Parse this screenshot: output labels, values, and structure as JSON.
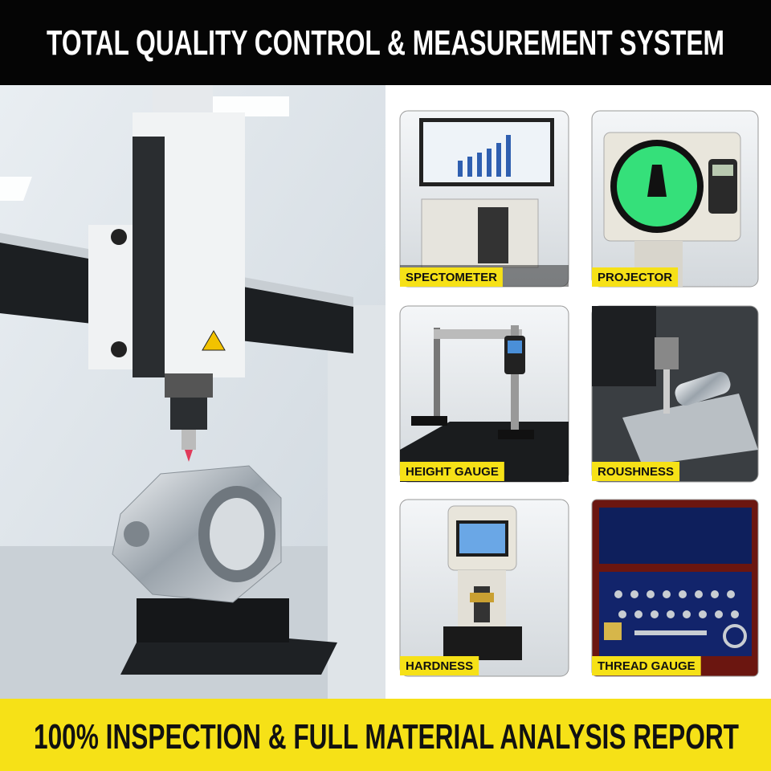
{
  "header": {
    "title": "TOTAL QUALITY CONTROL & MEASUREMENT SYSTEM"
  },
  "tiles": [
    {
      "label": "SPECTOMETER"
    },
    {
      "label": "PROJECTOR"
    },
    {
      "label": "HEIGHT GAUGE"
    },
    {
      "label": "ROUSHNESS"
    },
    {
      "label": "HARDNESS"
    },
    {
      "label": "THREAD GAUGE"
    }
  ],
  "footer": {
    "text": "100% INSPECTION & FULL MATERIAL ANALYSIS REPORT"
  }
}
